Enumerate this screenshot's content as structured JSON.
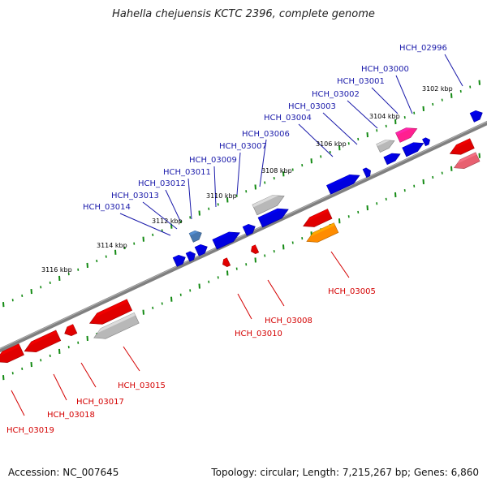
{
  "title": "Hahella chejuensis KCTC 2396, complete genome",
  "accession": "Accession: NC_007645",
  "summary": "Topology: circular; Length: 7,215,267 bp; Genes: 6,860",
  "kbp_ticks": [
    "3102 kbp",
    "3104 kbp",
    "3106 kbp",
    "3108 kbp",
    "3110 kbp",
    "3112 kbp",
    "3114 kbp",
    "3116 kbp"
  ],
  "forward_genes": [
    "HCH_02996",
    "HCH_03000",
    "HCH_03001",
    "HCH_03002",
    "HCH_03003",
    "HCH_03004",
    "HCH_03006",
    "HCH_03007",
    "HCH_03009",
    "HCH_03011",
    "HCH_03012",
    "HCH_03013",
    "HCH_03014"
  ],
  "reverse_genes": [
    "HCH_03005",
    "HCH_03008",
    "HCH_03010",
    "HCH_03015",
    "HCH_03017",
    "HCH_03018",
    "HCH_03019"
  ],
  "colors": {
    "forward": "#0000e0",
    "reverse": "#e00000",
    "pseudo": "#b8b8b8",
    "rna": "#ff2090",
    "pale_red": "#e86070",
    "orange": "#ff8c00",
    "steel": "#4878b0",
    "tick_green": "#138a13",
    "backbone": "#808080"
  }
}
